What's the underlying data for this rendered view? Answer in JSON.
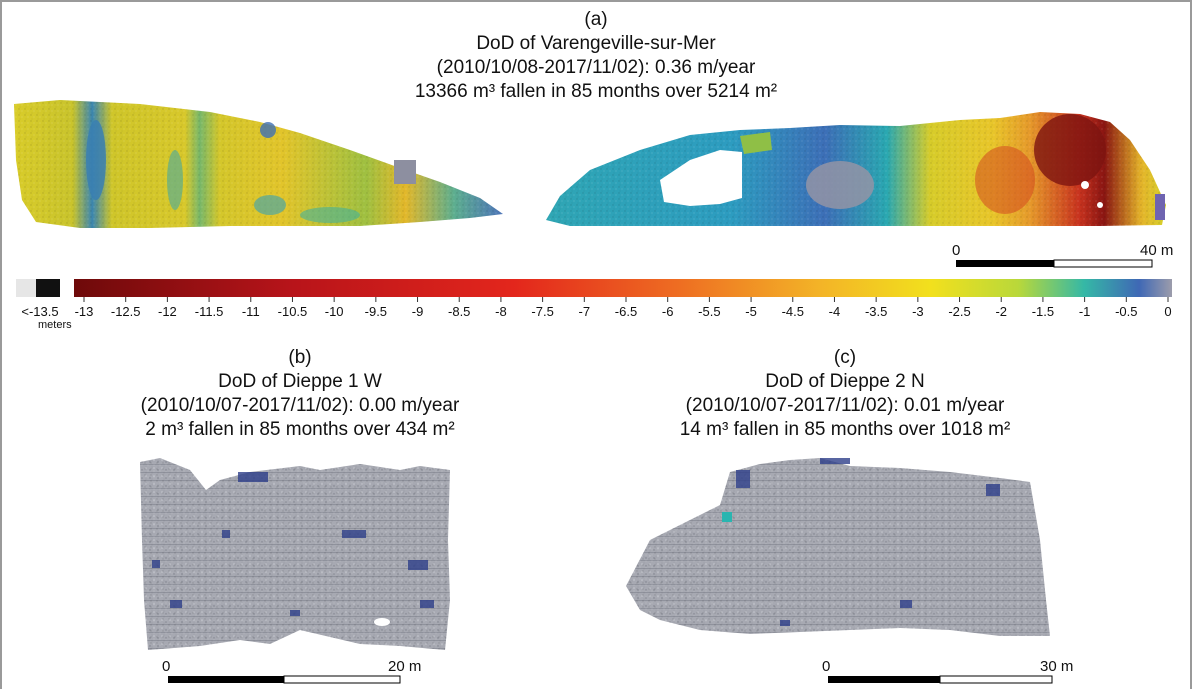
{
  "panel_a": {
    "letter": "(a)",
    "title": "DoD of Varengeville-sur-Mer",
    "period": "(2010/10/08-2017/11/02): 0.36 m/year",
    "summary": "13366 m³ fallen in 85 months over 5214 m²",
    "scalebar": {
      "start": "0",
      "end": "40 m"
    }
  },
  "panel_b": {
    "letter": "(b)",
    "title": "DoD of Dieppe 1 W",
    "period": "(2010/10/07-2017/11/02): 0.00 m/year",
    "summary": "2 m³ fallen in 85 months over 434 m²",
    "scalebar": {
      "start": "0",
      "end": "20 m"
    }
  },
  "panel_c": {
    "letter": "(c)",
    "title": "DoD of Dieppe 2 N",
    "period": "(2010/10/07-2017/11/02): 0.01 m/year",
    "summary": "14 m³ fallen in 85 months over 1018 m²",
    "scalebar": {
      "start": "0",
      "end": "30 m"
    }
  },
  "colorbar": {
    "below_label": "<-13.5",
    "unit": "meters",
    "ticks": [
      "-13",
      "-12.5",
      "-12",
      "-11.5",
      "-11",
      "-10.5",
      "-10",
      "-9.5",
      "-9",
      "-8.5",
      "-8",
      "-7.5",
      "-7",
      "-6.5",
      "-6",
      "-5.5",
      "-5",
      "-4.5",
      "-4",
      "-3.5",
      "-3",
      "-2.5",
      "-2",
      "-1.5",
      "-1",
      "-0.5",
      "0"
    ],
    "colors": {
      "dark_red": "#7a0a0a",
      "red": "#e0231c",
      "orange": "#f29a2a",
      "yellow": "#f3e01c",
      "teal": "#2ab5b0",
      "blue": "#3f63b6",
      "grey": "#9a9aa8",
      "below": "#111111"
    }
  }
}
